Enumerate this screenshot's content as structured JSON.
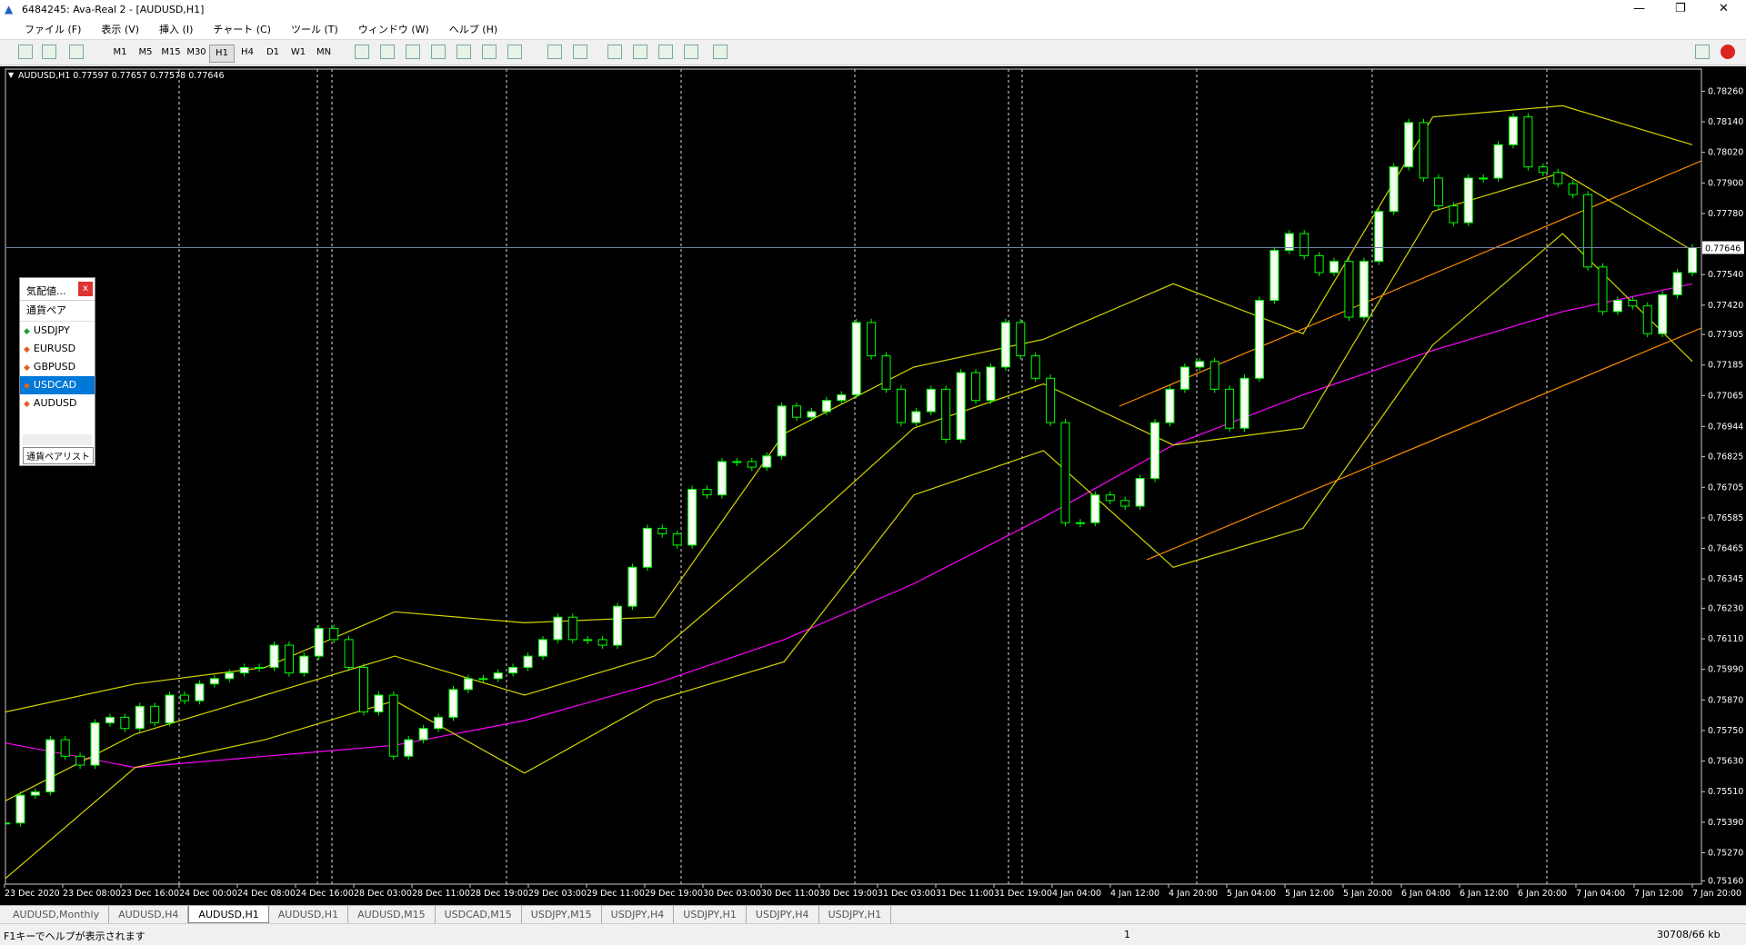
{
  "window": {
    "title": "6484245: Ava-Real 2 - [AUDUSD,H1]"
  },
  "menu": [
    "ファイル (F)",
    "表示 (V)",
    "挿入 (I)",
    "チャート (C)",
    "ツール (T)",
    "ウィンドウ (W)",
    "ヘルプ (H)"
  ],
  "toolbar": {
    "periods": [
      "M1",
      "M5",
      "M15",
      "M30",
      "H1",
      "H4",
      "D1",
      "W1",
      "MN"
    ],
    "active": 4
  },
  "chart_data": {
    "type": "candlestick",
    "header": "AUDUSD,H1  0.77597 0.77657 0.77578 0.77646",
    "current_price": 0.77646,
    "ylim": [
      0.75147,
      0.78347
    ],
    "yticks": [
      {
        "value": 0.7826,
        "label": "0.78260"
      },
      {
        "value": 0.7814,
        "label": "0.78140"
      },
      {
        "value": 0.7802,
        "label": "0.78020"
      },
      {
        "value": 0.779,
        "label": "0.77900"
      },
      {
        "value": 0.7778,
        "label": "0.77780"
      },
      {
        "value": 0.7754,
        "label": "0.77540"
      },
      {
        "value": 0.7742,
        "label": "0.77420"
      },
      0.77305,
      0.77185,
      {
        "value": 0.77065,
        "label": "0.77065"
      },
      0.76944,
      0.76825,
      0.76705,
      0.76585,
      0.76465,
      0.76345,
      {
        "value": 0.7623,
        "label": "0.76230"
      },
      {
        "value": 0.7611,
        "label": "0.76110"
      },
      {
        "value": 0.7599,
        "label": "0.75990"
      },
      {
        "value": 0.7587,
        "label": "0.75870"
      },
      {
        "value": 0.7575,
        "label": "0.75750"
      },
      {
        "value": 0.7563,
        "label": "0.75630"
      },
      {
        "value": 0.7551,
        "label": "0.75510"
      },
      {
        "value": 0.7539,
        "label": "0.75390"
      },
      {
        "value": 0.7527,
        "label": "0.75270"
      },
      {
        "value": 0.7516,
        "label": "0.75160"
      }
    ],
    "x_labels": [
      "23 Dec 2020",
      "23 Dec 08:00",
      "23 Dec 16:00",
      "24 Dec 00:00",
      "24 Dec 08:00",
      "24 Dec 16:00",
      "28 Dec 03:00",
      "28 Dec 11:00",
      "28 Dec 19:00",
      "29 Dec 03:00",
      "29 Dec 11:00",
      "29 Dec 19:00",
      "30 Dec 03:00",
      "30 Dec 11:00",
      "30 Dec 19:00",
      "31 Dec 03:00",
      "31 Dec 11:00",
      "31 Dec 19:00",
      "4 Jan 04:00",
      "4 Jan 12:00",
      "4 Jan 20:00",
      "5 Jan 04:00",
      "5 Jan 12:00",
      "5 Jan 20:00",
      "6 Jan 04:00",
      "6 Jan 12:00",
      "6 Jan 20:00",
      "7 Jan 04:00",
      "7 Jan 12:00",
      "7 Jan 20:00"
    ],
    "close": [
      0.75387,
      0.75496,
      0.75509,
      0.75714,
      0.75649,
      0.75614,
      0.7578,
      0.75802,
      0.75758,
      0.75845,
      0.7578,
      0.75889,
      0.75867,
      0.75933,
      0.75954,
      0.75976,
      0.75998,
      0.75998,
      0.76085,
      0.75976,
      0.76042,
      0.76151,
      0.76107,
      0.75998,
      0.75823,
      0.75889,
      0.75649,
      0.75714,
      0.75758,
      0.75802,
      0.75911,
      0.75954,
      0.75954,
      0.75976,
      0.75998,
      0.76042,
      0.76107,
      0.76195,
      0.76107,
      0.76107,
      0.76085,
      0.76238,
      0.76391,
      0.76544,
      0.76522,
      0.76478,
      0.76697,
      0.76675,
      0.76806,
      0.76806,
      0.76784,
      0.76828,
      0.77024,
      0.7698,
      0.77002,
      0.77046,
      0.77068,
      0.77352,
      0.77221,
      0.7709,
      0.76959,
      0.77002,
      0.7709,
      0.76893,
      0.77155,
      0.77046,
      0.77177,
      0.77352,
      0.77221,
      0.77133,
      0.76959,
      0.76566,
      0.76566,
      0.76675,
      0.76653,
      0.76631,
      0.7674,
      0.76959,
      0.7709,
      0.77177,
      0.77199,
      0.7709,
      0.76937,
      0.77133,
      0.77439,
      0.77635,
      0.77701,
      0.77614,
      0.77548,
      0.77592,
      0.77373,
      0.77592,
      0.77788,
      0.77963,
      0.78137,
      0.77919,
      0.7781,
      0.77744,
      0.77919,
      0.77919,
      0.7805,
      0.78159,
      0.77963,
      0.77941,
      0.77897,
      0.77854,
      0.7757,
      0.77395,
      0.77439,
      0.77417,
      0.77308,
      0.77461,
      0.77548,
      0.77646
    ],
    "candle_colors": {
      "up": "#f4fff0",
      "down": "#000000",
      "outline": "#00ff00"
    },
    "indicators": [
      {
        "color": "#ff00ff",
        "values": [
          0.75701,
          0.75605,
          0.75649,
          0.75692,
          0.75789,
          0.75933,
          0.76107,
          0.76326,
          0.76587,
          0.76871,
          0.77068,
          0.77242,
          0.77395,
          0.77504
        ]
      },
      {
        "color": "#d4d400",
        "values": [
          0.75823,
          0.75933,
          0.75998,
          0.76216,
          0.76173,
          0.76195,
          0.76915,
          0.77177,
          0.77286,
          0.77504,
          0.77308,
          0.78159,
          0.78203,
          0.7805
        ]
      },
      {
        "color": "#d4d400",
        "values": [
          0.75474,
          0.75736,
          0.75889,
          0.76042,
          0.75889,
          0.76042,
          0.76478,
          0.76937,
          0.77111,
          0.76871,
          0.76937,
          0.77788,
          0.77941,
          0.77635
        ]
      },
      {
        "color": "#d4d400",
        "values": [
          0.75169,
          0.75605,
          0.75714,
          0.75867,
          0.75583,
          0.75867,
          0.7602,
          0.76675,
          0.76849,
          0.76391,
          0.76544,
          0.77264,
          0.77701,
          0.77199
        ]
      }
    ]
  },
  "market_watch": {
    "title": "気配値...",
    "close": "x",
    "header": "通貨ペア",
    "symbols": [
      "USDJPY",
      "EURUSD",
      "GBPUSD",
      "USDCAD",
      "AUDUSD"
    ],
    "selected": 3,
    "tab": "通貨ペアリスト"
  },
  "tabs": [
    "AUDUSD,Monthly",
    "AUDUSD,H4",
    "AUDUSD,H1",
    "AUDUSD,H1",
    "AUDUSD,M15",
    "USDCAD,M15",
    "USDJPY,M15",
    "USDJPY,H4",
    "USDJPY,H1",
    "USDJPY,H4",
    "USDJPY,H1"
  ],
  "active_tab": 2,
  "status": {
    "help": "F1キーでヘルプが表示されます",
    "page": "1",
    "traffic": "30708/66 kb"
  }
}
